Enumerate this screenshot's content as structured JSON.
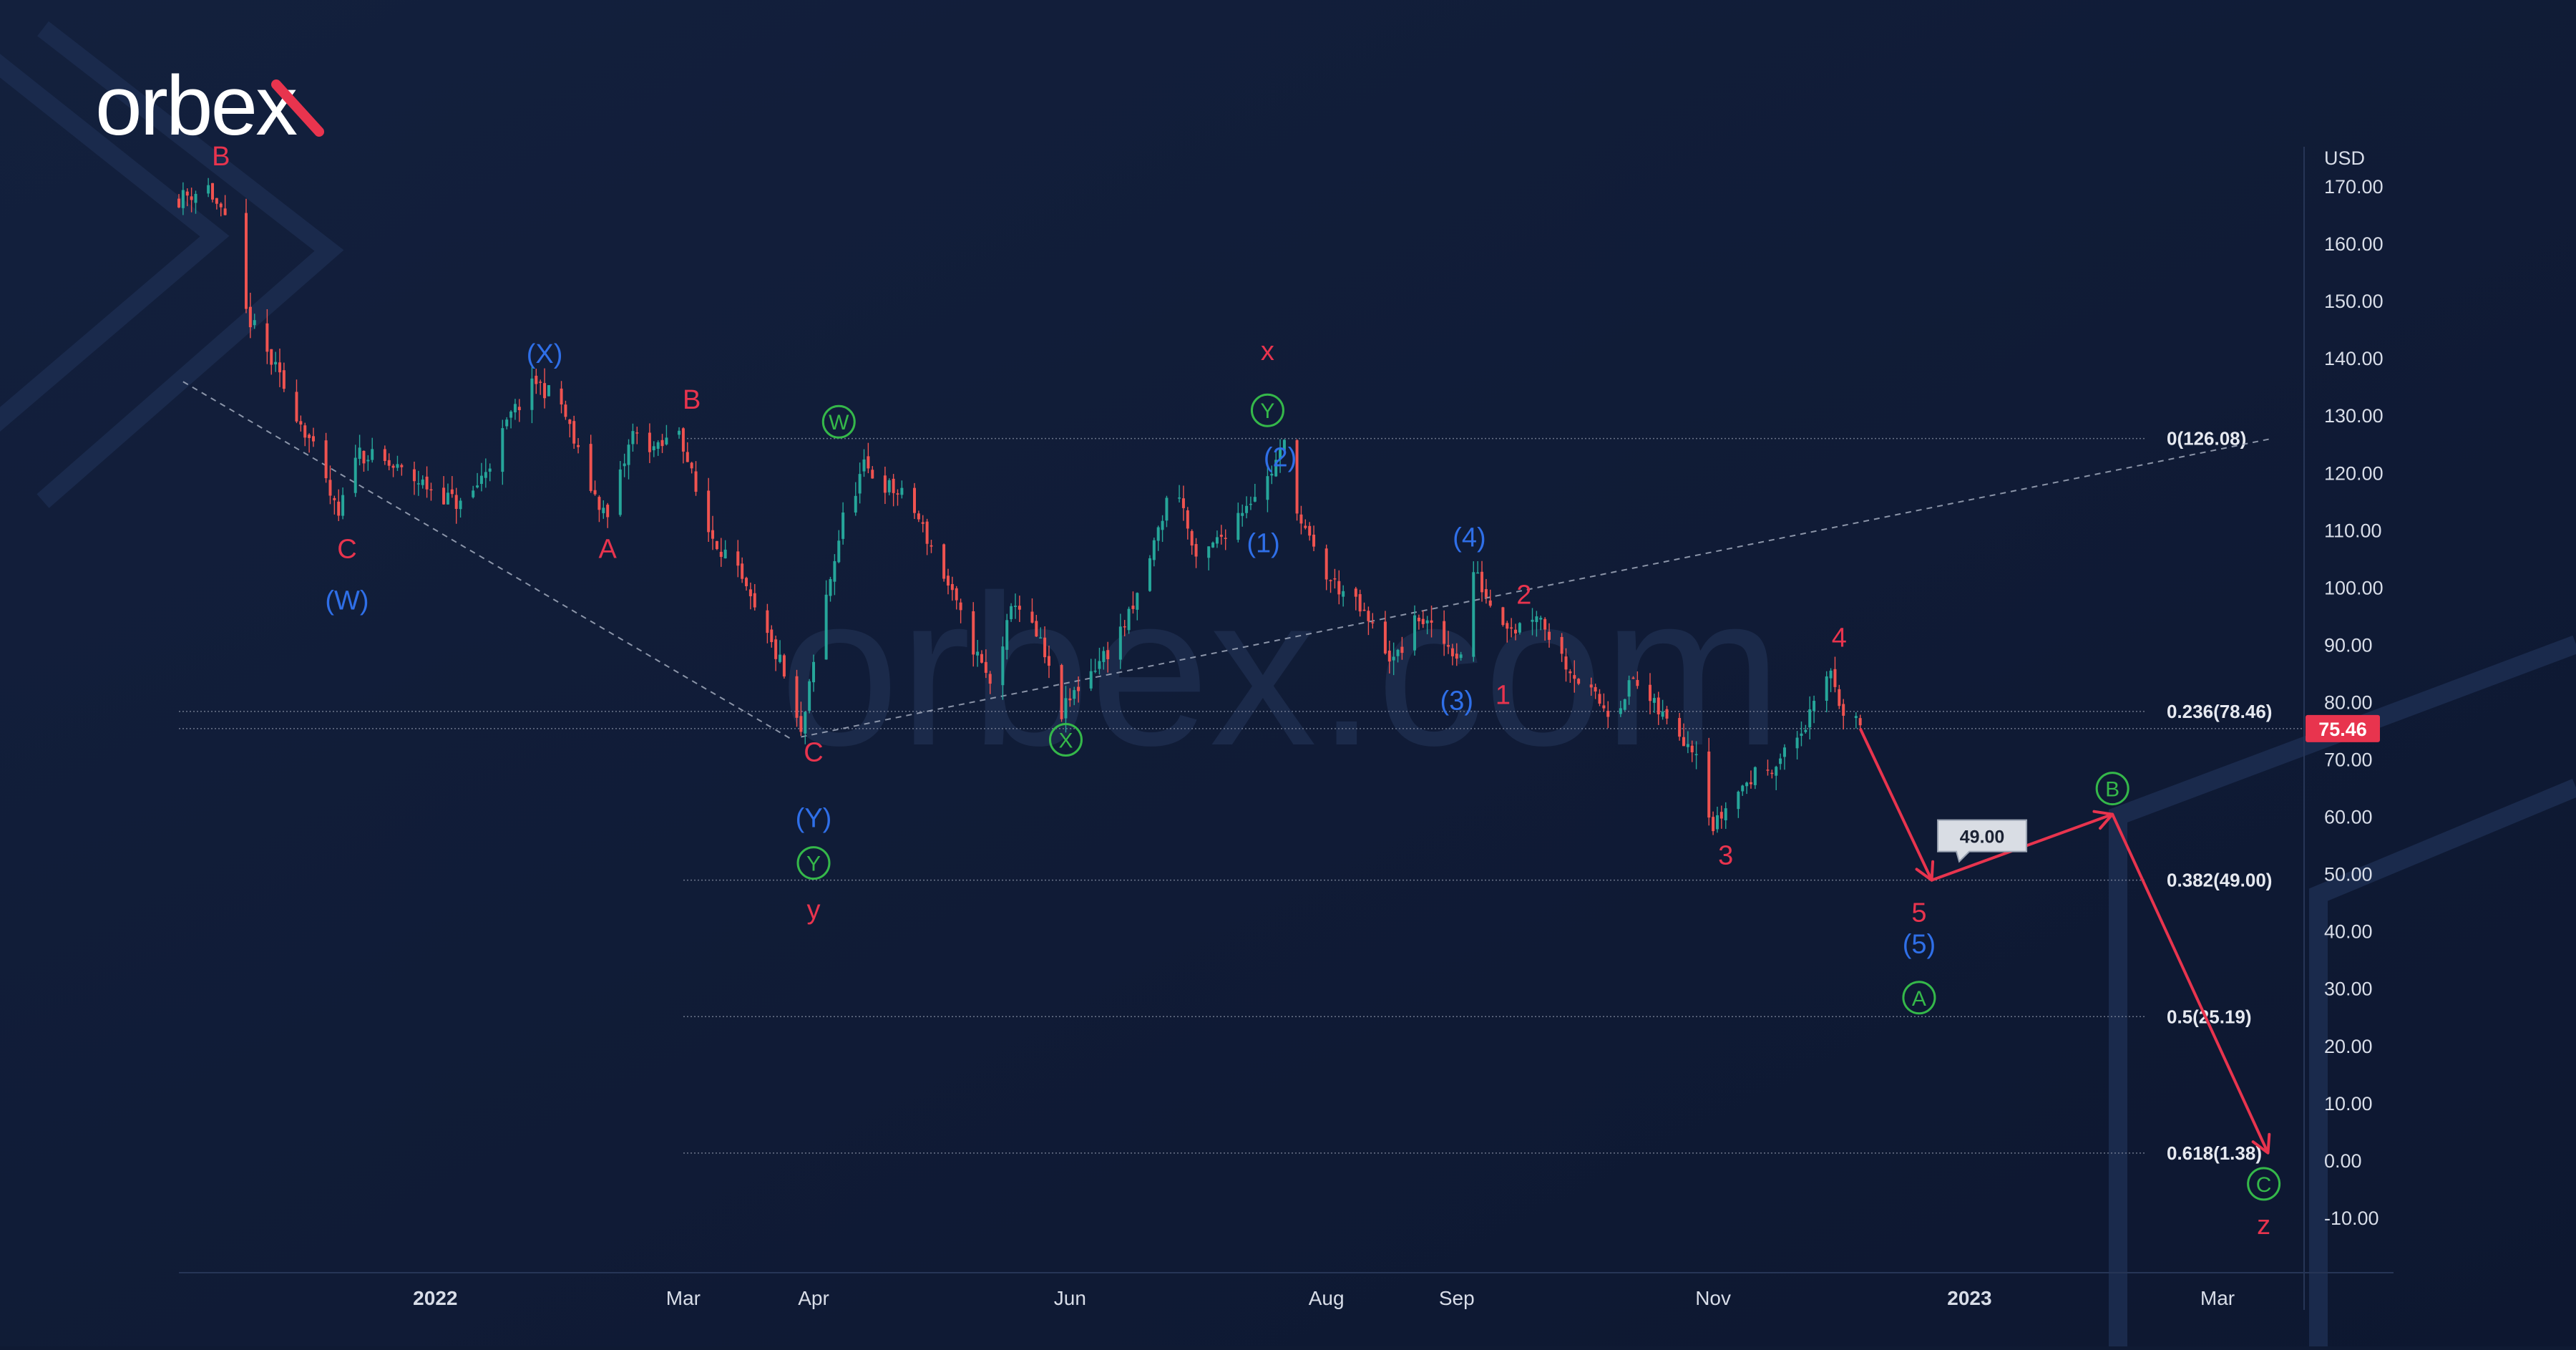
{
  "brand": {
    "logo_text": "orbex",
    "watermark_text": "orbex.com"
  },
  "colors": {
    "background": "#0f1a33",
    "bull_candle": "#26a69a",
    "bear_candle": "#ef5350",
    "wave_red": "#e8344e",
    "wave_blue": "#2f6fe8",
    "wave_green": "#35b84a",
    "fib_line": "#8a93a6",
    "axis_text": "#d8dde8",
    "forecast_arrow": "#e8344e"
  },
  "chart_data": {
    "type": "candlestick",
    "currency_label": "USD",
    "last_price": 75.46,
    "y_ticks": [
      "170.00",
      "160.00",
      "150.00",
      "140.00",
      "130.00",
      "120.00",
      "110.00",
      "100.00",
      "90.00",
      "80.00",
      "70.00",
      "60.00",
      "50.00",
      "40.00",
      "30.00",
      "20.00",
      "10.00",
      "0.00",
      "-10.00"
    ],
    "x_ticks": [
      "2022",
      "Mar",
      "Apr",
      "Jun",
      "Aug",
      "Sep",
      "Nov",
      "2023",
      "Mar"
    ],
    "ylim": [
      -19.5,
      177
    ],
    "fib_levels": [
      {
        "label": "0(126.08)",
        "value": 126.08
      },
      {
        "label": "0.236(78.46)",
        "value": 78.46
      },
      {
        "label": "0.382(49.00)",
        "value": 49.0
      },
      {
        "label": "0.5(25.19)",
        "value": 25.19
      },
      {
        "label": "0.618(1.38)",
        "value": 1.38
      }
    ],
    "price_path": [
      {
        "d": "2021-11-01",
        "v": 168
      },
      {
        "d": "2021-11-08",
        "v": 170
      },
      {
        "d": "2021-11-13",
        "v": 162
      },
      {
        "d": "2021-11-17",
        "v": 148
      },
      {
        "d": "2021-11-24",
        "v": 138
      },
      {
        "d": "2021-12-02",
        "v": 126
      },
      {
        "d": "2021-12-09",
        "v": 112
      },
      {
        "d": "2021-12-13",
        "v": 124
      },
      {
        "d": "2021-12-22",
        "v": 121
      },
      {
        "d": "2022-01-01",
        "v": 117
      },
      {
        "d": "2022-01-08",
        "v": 114
      },
      {
        "d": "2022-01-14",
        "v": 122
      },
      {
        "d": "2022-01-19",
        "v": 130
      },
      {
        "d": "2022-01-25",
        "v": 136
      },
      {
        "d": "2022-01-31",
        "v": 132
      },
      {
        "d": "2022-02-06",
        "v": 119
      },
      {
        "d": "2022-02-11",
        "v": 112
      },
      {
        "d": "2022-02-17",
        "v": 127
      },
      {
        "d": "2022-02-23",
        "v": 124
      },
      {
        "d": "2022-02-28",
        "v": 128
      },
      {
        "d": "2022-03-06",
        "v": 111
      },
      {
        "d": "2022-03-13",
        "v": 104
      },
      {
        "d": "2022-03-19",
        "v": 94
      },
      {
        "d": "2022-03-24",
        "v": 87
      },
      {
        "d": "2022-03-29",
        "v": 74
      },
      {
        "d": "2022-04-03",
        "v": 95
      },
      {
        "d": "2022-04-08",
        "v": 112
      },
      {
        "d": "2022-04-13",
        "v": 121
      },
      {
        "d": "2022-04-18",
        "v": 118
      },
      {
        "d": "2022-04-24",
        "v": 115
      },
      {
        "d": "2022-05-01",
        "v": 104
      },
      {
        "d": "2022-05-07",
        "v": 93
      },
      {
        "d": "2022-05-13",
        "v": 83
      },
      {
        "d": "2022-05-19",
        "v": 98
      },
      {
        "d": "2022-05-25",
        "v": 90
      },
      {
        "d": "2022-05-30",
        "v": 78
      },
      {
        "d": "2022-06-04",
        "v": 84
      },
      {
        "d": "2022-06-10",
        "v": 89
      },
      {
        "d": "2022-06-16",
        "v": 96
      },
      {
        "d": "2022-06-22",
        "v": 110
      },
      {
        "d": "2022-06-26",
        "v": 120
      },
      {
        "d": "2022-07-01",
        "v": 104
      },
      {
        "d": "2022-07-07",
        "v": 109
      },
      {
        "d": "2022-07-13",
        "v": 115
      },
      {
        "d": "2022-07-18",
        "v": 119
      },
      {
        "d": "2022-07-22",
        "v": 125
      },
      {
        "d": "2022-07-26",
        "v": 111
      },
      {
        "d": "2022-08-01",
        "v": 102
      },
      {
        "d": "2022-08-07",
        "v": 98
      },
      {
        "d": "2022-08-12",
        "v": 93
      },
      {
        "d": "2022-08-17",
        "v": 87
      },
      {
        "d": "2022-08-23",
        "v": 95
      },
      {
        "d": "2022-08-28",
        "v": 91
      },
      {
        "d": "2022-09-02",
        "v": 88
      },
      {
        "d": "2022-09-05",
        "v": 103
      },
      {
        "d": "2022-09-10",
        "v": 96
      },
      {
        "d": "2022-09-15",
        "v": 93
      },
      {
        "d": "2022-09-20",
        "v": 96
      },
      {
        "d": "2022-09-26",
        "v": 88
      },
      {
        "d": "2022-10-02",
        "v": 82
      },
      {
        "d": "2022-10-08",
        "v": 78
      },
      {
        "d": "2022-10-13",
        "v": 84
      },
      {
        "d": "2022-10-17",
        "v": 80
      },
      {
        "d": "2022-10-22",
        "v": 76
      },
      {
        "d": "2022-10-28",
        "v": 72
      },
      {
        "d": "2022-11-01",
        "v": 58
      },
      {
        "d": "2022-11-06",
        "v": 64
      },
      {
        "d": "2022-11-12",
        "v": 68
      },
      {
        "d": "2022-11-17",
        "v": 70
      },
      {
        "d": "2022-11-22",
        "v": 75
      },
      {
        "d": "2022-11-26",
        "v": 80
      },
      {
        "d": "2022-11-29",
        "v": 86
      },
      {
        "d": "2022-12-02",
        "v": 78
      },
      {
        "d": "2022-12-06",
        "v": 75.46
      }
    ],
    "forecast_path": [
      {
        "d": "2022-12-06",
        "v": 75.46
      },
      {
        "d": "2022-12-23",
        "v": 49.0
      },
      {
        "d": "2023-02-04",
        "v": 60.5
      },
      {
        "d": "2023-03-13",
        "v": 1.4
      }
    ],
    "trend_lines": [
      {
        "from": {
          "d": "2021-11-02",
          "v": 136
        },
        "to": {
          "d": "2022-03-27",
          "v": 73.5
        }
      },
      {
        "from": {
          "d": "2022-03-29",
          "v": 74
        },
        "to": {
          "d": "2023-03-14",
          "v": 126.08
        }
      }
    ],
    "measure_callout": "49.00",
    "wave_labels": [
      {
        "text": "B",
        "d": "2021-11-11",
        "v": 175.5,
        "color": "red",
        "circle": false
      },
      {
        "text": "C",
        "d": "2021-12-11",
        "v": 107,
        "color": "red",
        "circle": false
      },
      {
        "text": "(W)",
        "d": "2021-12-11",
        "v": 98,
        "color": "blue",
        "circle": false
      },
      {
        "text": "(X)",
        "d": "2022-01-27",
        "v": 141,
        "color": "blue",
        "circle": false
      },
      {
        "text": "A",
        "d": "2022-02-11",
        "v": 107,
        "color": "red",
        "circle": false
      },
      {
        "text": "B",
        "d": "2022-03-03",
        "v": 133,
        "color": "red",
        "circle": false
      },
      {
        "text": "W",
        "d": "2022-04-07",
        "v": 129,
        "color": "green",
        "circle": true
      },
      {
        "text": "C",
        "d": "2022-04-01",
        "v": 71.5,
        "color": "red",
        "circle": false
      },
      {
        "text": "(Y)",
        "d": "2022-04-01",
        "v": 60,
        "color": "blue",
        "circle": false
      },
      {
        "text": "Y",
        "d": "2022-04-01",
        "v": 52,
        "color": "green",
        "circle": true
      },
      {
        "text": "y",
        "d": "2022-04-01",
        "v": 44,
        "color": "red",
        "circle": false
      },
      {
        "text": "X",
        "d": "2022-05-31",
        "v": 73.5,
        "color": "green",
        "circle": true
      },
      {
        "text": "x",
        "d": "2022-07-18",
        "v": 141.5,
        "color": "red",
        "circle": false
      },
      {
        "text": "Y",
        "d": "2022-07-18",
        "v": 131,
        "color": "green",
        "circle": true
      },
      {
        "text": "(2)",
        "d": "2022-07-21",
        "v": 123,
        "color": "blue",
        "circle": false
      },
      {
        "text": "(1)",
        "d": "2022-07-17",
        "v": 108,
        "color": "blue",
        "circle": false
      },
      {
        "text": "(4)",
        "d": "2022-09-04",
        "v": 109,
        "color": "blue",
        "circle": false
      },
      {
        "text": "2",
        "d": "2022-09-17",
        "v": 99,
        "color": "red",
        "circle": false
      },
      {
        "text": "(3)",
        "d": "2022-09-01",
        "v": 80.5,
        "color": "blue",
        "circle": false
      },
      {
        "text": "1",
        "d": "2022-09-12",
        "v": 81.5,
        "color": "red",
        "circle": false
      },
      {
        "text": "3",
        "d": "2022-11-04",
        "v": 53.5,
        "color": "red",
        "circle": false
      },
      {
        "text": "4",
        "d": "2022-12-01",
        "v": 91.5,
        "color": "red",
        "circle": false
      },
      {
        "text": "5",
        "d": "2022-12-20",
        "v": 43.5,
        "color": "red",
        "circle": false
      },
      {
        "text": "(5)",
        "d": "2022-12-20",
        "v": 38,
        "color": "blue",
        "circle": false
      },
      {
        "text": "A",
        "d": "2022-12-20",
        "v": 28.5,
        "color": "green",
        "circle": true
      },
      {
        "text": "B",
        "d": "2023-02-04",
        "v": 65,
        "color": "green",
        "circle": true
      },
      {
        "text": "C",
        "d": "2023-03-12",
        "v": -4,
        "color": "green",
        "circle": true
      },
      {
        "text": "z",
        "d": "2023-03-12",
        "v": -11,
        "color": "red",
        "circle": false
      }
    ]
  }
}
